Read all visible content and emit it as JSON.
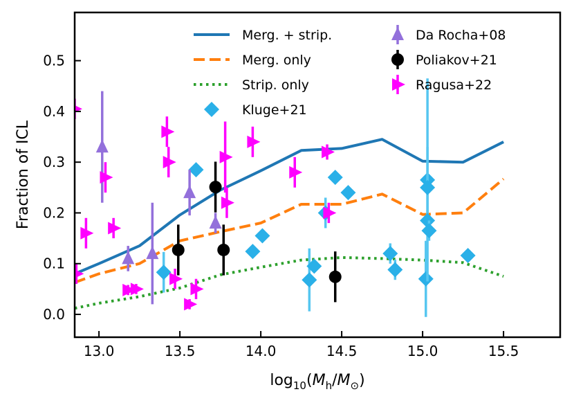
{
  "chart_data": {
    "type": "scatter",
    "title": "",
    "xlabel": "log10(Mh/M☉)",
    "xlabel_parts": {
      "func": "log",
      "sub": "10",
      "open": "(",
      "num": "M",
      "num_sub": "h",
      "slash": "/",
      "den": "M",
      "den_sub": "⊙",
      "close": ")"
    },
    "ylabel": "Fraction of ICL",
    "xlim": [
      12.85,
      15.85
    ],
    "ylim": [
      -0.045,
      0.595
    ],
    "xticks": [
      13.0,
      13.5,
      14.0,
      14.5,
      15.0,
      15.5
    ],
    "xtick_labels": [
      "13.0",
      "13.5",
      "14.0",
      "14.5",
      "15.0",
      "15.5"
    ],
    "yticks": [
      0.0,
      0.1,
      0.2,
      0.3,
      0.4,
      0.5
    ],
    "ytick_labels": [
      "0.0",
      "0.1",
      "0.2",
      "0.3",
      "0.4",
      "0.5"
    ],
    "grid": false,
    "legend_position": "top-right",
    "lines": [
      {
        "name": "Merg. + strip.",
        "color": "#1f77b4",
        "style": "solid",
        "x": [
          12.85,
          13.0,
          13.25,
          13.5,
          13.75,
          14.0,
          14.25,
          14.5,
          14.75,
          15.0,
          15.25,
          15.5
        ],
        "y": [
          0.08,
          0.1,
          0.135,
          0.196,
          0.245,
          0.283,
          0.323,
          0.327,
          0.345,
          0.302,
          0.3,
          0.34
        ]
      },
      {
        "name": "Merg. only",
        "color": "#ff7f0e",
        "style": "dashed",
        "x": [
          12.85,
          13.0,
          13.25,
          13.5,
          13.75,
          14.0,
          14.25,
          14.5,
          14.75,
          15.0,
          15.25,
          15.5
        ],
        "y": [
          0.063,
          0.08,
          0.1,
          0.145,
          0.163,
          0.18,
          0.217,
          0.217,
          0.237,
          0.197,
          0.2,
          0.267
        ]
      },
      {
        "name": "Strip. only",
        "color": "#2ca02c",
        "style": "dotted",
        "x": [
          12.85,
          13.0,
          13.25,
          13.5,
          13.75,
          14.0,
          14.25,
          14.5,
          14.75,
          15.0,
          15.25,
          15.5
        ],
        "y": [
          0.012,
          0.022,
          0.035,
          0.052,
          0.078,
          0.093,
          0.107,
          0.112,
          0.11,
          0.107,
          0.102,
          0.075
        ]
      }
    ],
    "scatter_series": [
      {
        "name": "Kluge+21",
        "color": "#2ab0e8",
        "bar_color": "#56c6f0",
        "marker": "diamond",
        "points": [
          {
            "x": 13.6,
            "y": 0.285,
            "err": 0.01
          },
          {
            "x": 13.4,
            "y": 0.083,
            "err": 0.04
          },
          {
            "x": 13.95,
            "y": 0.124,
            "err": 0.01
          },
          {
            "x": 14.01,
            "y": 0.155,
            "err": 0.01
          },
          {
            "x": 14.3,
            "y": 0.068,
            "err": 0.062
          },
          {
            "x": 14.33,
            "y": 0.095,
            "err": 0.01
          },
          {
            "x": 14.4,
            "y": 0.2,
            "err": 0.03
          },
          {
            "x": 14.46,
            "y": 0.27,
            "err": 0.01
          },
          {
            "x": 14.54,
            "y": 0.24,
            "err": 0.01
          },
          {
            "x": 14.8,
            "y": 0.12,
            "err": 0.02
          },
          {
            "x": 14.83,
            "y": 0.088,
            "err": 0.02
          },
          {
            "x": 15.02,
            "y": 0.07,
            "err": 0.075
          },
          {
            "x": 15.03,
            "y": 0.265,
            "err": 0.2
          },
          {
            "x": 15.03,
            "y": 0.25,
            "err": 0.08
          },
          {
            "x": 15.03,
            "y": 0.185,
            "err": 0.02
          },
          {
            "x": 15.04,
            "y": 0.165,
            "err": 0.02
          },
          {
            "x": 15.28,
            "y": 0.116,
            "err": 0.01
          }
        ]
      },
      {
        "name": "Da Rocha+08",
        "color": "#9370db",
        "bar_color": "#9370db",
        "marker": "triangle",
        "points": [
          {
            "x": 13.02,
            "y": 0.33,
            "err": 0.11
          },
          {
            "x": 13.18,
            "y": 0.11,
            "err": 0.025
          },
          {
            "x": 13.33,
            "y": 0.12,
            "err": 0.1
          },
          {
            "x": 13.56,
            "y": 0.24,
            "err": 0.045
          },
          {
            "x": 13.72,
            "y": 0.18,
            "err": 0.02
          }
        ]
      },
      {
        "name": "Poliakov+21",
        "color": "#000000",
        "bar_color": "#000000",
        "marker": "circle",
        "points": [
          {
            "x": 13.49,
            "y": 0.127,
            "err": 0.05
          },
          {
            "x": 13.72,
            "y": 0.251,
            "err": 0.05
          },
          {
            "x": 13.77,
            "y": 0.127,
            "err": 0.05
          },
          {
            "x": 14.46,
            "y": 0.074,
            "err": 0.05
          }
        ]
      },
      {
        "name": "Ragusa+22",
        "color": "#ff00ff",
        "bar_color": "#ff00ff",
        "marker": "triangle-right",
        "points": [
          {
            "x": 12.85,
            "y": 0.405,
            "err": 0.02
          },
          {
            "x": 12.86,
            "y": 0.08,
            "err": 0.02
          },
          {
            "x": 12.92,
            "y": 0.16,
            "err": 0.03
          },
          {
            "x": 13.04,
            "y": 0.27,
            "err": 0.03
          },
          {
            "x": 13.09,
            "y": 0.17,
            "err": 0.02
          },
          {
            "x": 13.18,
            "y": 0.048,
            "err": 0.01
          },
          {
            "x": 13.23,
            "y": 0.05,
            "err": 0.01
          },
          {
            "x": 13.42,
            "y": 0.36,
            "err": 0.03
          },
          {
            "x": 13.43,
            "y": 0.3,
            "err": 0.03
          },
          {
            "x": 13.47,
            "y": 0.07,
            "err": 0.02
          },
          {
            "x": 13.56,
            "y": 0.02,
            "err": 0.01
          },
          {
            "x": 13.6,
            "y": 0.05,
            "err": 0.02
          },
          {
            "x": 13.78,
            "y": 0.31,
            "err": 0.07
          },
          {
            "x": 13.79,
            "y": 0.22,
            "err": 0.03
          },
          {
            "x": 13.95,
            "y": 0.34,
            "err": 0.03
          },
          {
            "x": 14.21,
            "y": 0.28,
            "err": 0.03
          },
          {
            "x": 14.41,
            "y": 0.32,
            "err": 0.015
          },
          {
            "x": 14.42,
            "y": 0.2,
            "err": 0.02
          }
        ]
      }
    ],
    "legend": {
      "col1": [
        "Merg. + strip.",
        "Merg. only",
        "Strip. only",
        "Kluge+21"
      ],
      "col2": [
        "Da Rocha+08",
        "Poliakov+21",
        "Ragusa+22"
      ]
    }
  }
}
